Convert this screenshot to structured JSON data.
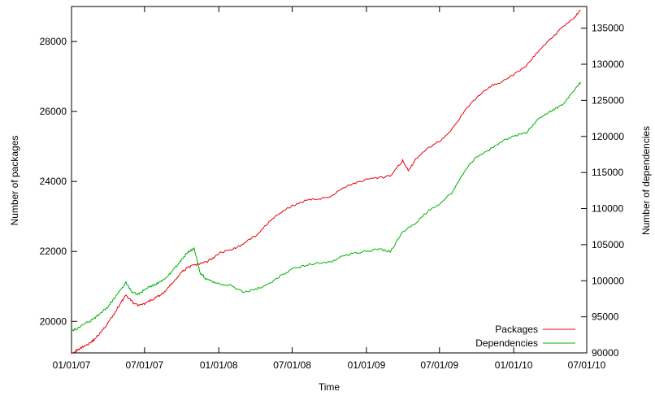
{
  "chart_data": {
    "type": "line",
    "xlabel": "Time",
    "ylabel_left": "Number of packages",
    "ylabel_right": "Number of dependencies",
    "x_ticks": [
      "01/01/07",
      "07/01/07",
      "01/01/08",
      "07/01/08",
      "01/01/09",
      "07/01/09",
      "01/01/10",
      "07/01/10"
    ],
    "xlim": [
      "2007-01-01",
      "2010-07-01"
    ],
    "ylim_left": [
      19100,
      29000
    ],
    "ylim_right": [
      90000,
      138000
    ],
    "y_ticks_left": [
      20000,
      22000,
      24000,
      26000,
      28000
    ],
    "y_ticks_right": [
      90000,
      95000,
      100000,
      105000,
      110000,
      115000,
      120000,
      125000,
      130000,
      135000
    ],
    "grid": false,
    "legend_position": "bottom-right",
    "series": [
      {
        "name": "Packages",
        "axis": "left",
        "color": "#e8000b",
        "points": [
          [
            "2007-01-01",
            19100
          ],
          [
            "2007-01-16",
            19180
          ],
          [
            "2007-02-01",
            19300
          ],
          [
            "2007-02-16",
            19380
          ],
          [
            "2007-03-01",
            19520
          ],
          [
            "2007-03-16",
            19700
          ],
          [
            "2007-04-01",
            19950
          ],
          [
            "2007-04-16",
            20200
          ],
          [
            "2007-05-01",
            20500
          ],
          [
            "2007-05-16",
            20750
          ],
          [
            "2007-06-01",
            20550
          ],
          [
            "2007-06-16",
            20450
          ],
          [
            "2007-07-01",
            20500
          ],
          [
            "2007-07-16",
            20600
          ],
          [
            "2007-08-01",
            20700
          ],
          [
            "2007-08-16",
            20800
          ],
          [
            "2007-09-01",
            21000
          ],
          [
            "2007-09-16",
            21200
          ],
          [
            "2007-10-01",
            21400
          ],
          [
            "2007-10-16",
            21550
          ],
          [
            "2007-11-01",
            21600
          ],
          [
            "2007-11-16",
            21650
          ],
          [
            "2007-12-01",
            21700
          ],
          [
            "2007-12-16",
            21800
          ],
          [
            "2008-01-01",
            21950
          ],
          [
            "2008-02-01",
            22050
          ],
          [
            "2008-03-01",
            22200
          ],
          [
            "2008-04-01",
            22450
          ],
          [
            "2008-05-01",
            22800
          ],
          [
            "2008-06-01",
            23100
          ],
          [
            "2008-07-01",
            23300
          ],
          [
            "2008-08-01",
            23450
          ],
          [
            "2008-09-01",
            23500
          ],
          [
            "2008-10-01",
            23550
          ],
          [
            "2008-11-01",
            23800
          ],
          [
            "2008-12-01",
            23950
          ],
          [
            "2009-01-01",
            24050
          ],
          [
            "2009-02-01",
            24100
          ],
          [
            "2009-03-01",
            24150
          ],
          [
            "2009-04-01",
            24600
          ],
          [
            "2009-04-15",
            24300
          ],
          [
            "2009-05-01",
            24600
          ],
          [
            "2009-06-01",
            24950
          ],
          [
            "2009-07-01",
            25150
          ],
          [
            "2009-08-01",
            25500
          ],
          [
            "2009-09-01",
            26000
          ],
          [
            "2009-10-01",
            26400
          ],
          [
            "2009-11-01",
            26700
          ],
          [
            "2009-12-01",
            26850
          ],
          [
            "2010-01-01",
            27050
          ],
          [
            "2010-02-01",
            27300
          ],
          [
            "2010-03-01",
            27700
          ],
          [
            "2010-04-01",
            28050
          ],
          [
            "2010-05-01",
            28400
          ],
          [
            "2010-06-01",
            28700
          ],
          [
            "2010-06-16",
            28900
          ]
        ]
      },
      {
        "name": "Dependencies",
        "axis": "right",
        "color": "#00b200",
        "points": [
          [
            "2007-01-01",
            93000
          ],
          [
            "2007-01-16",
            93400
          ],
          [
            "2007-02-01",
            94000
          ],
          [
            "2007-02-16",
            94400
          ],
          [
            "2007-03-01",
            94900
          ],
          [
            "2007-03-16",
            95600
          ],
          [
            "2007-04-01",
            96400
          ],
          [
            "2007-04-16",
            97500
          ],
          [
            "2007-05-01",
            98700
          ],
          [
            "2007-05-16",
            99700
          ],
          [
            "2007-06-01",
            98400
          ],
          [
            "2007-06-16",
            98100
          ],
          [
            "2007-07-01",
            98800
          ],
          [
            "2007-07-16",
            99200
          ],
          [
            "2007-08-01",
            99600
          ],
          [
            "2007-08-16",
            100100
          ],
          [
            "2007-09-01",
            100900
          ],
          [
            "2007-09-16",
            101900
          ],
          [
            "2007-10-01",
            102900
          ],
          [
            "2007-10-16",
            104000
          ],
          [
            "2007-11-01",
            104400
          ],
          [
            "2007-11-16",
            101100
          ],
          [
            "2007-12-01",
            100200
          ],
          [
            "2007-12-16",
            99900
          ],
          [
            "2008-01-01",
            99600
          ],
          [
            "2008-02-01",
            99300
          ],
          [
            "2008-03-01",
            98400
          ],
          [
            "2008-04-01",
            98800
          ],
          [
            "2008-05-01",
            99500
          ],
          [
            "2008-06-01",
            100600
          ],
          [
            "2008-07-01",
            101600
          ],
          [
            "2008-08-01",
            102100
          ],
          [
            "2008-09-01",
            102500
          ],
          [
            "2008-10-01",
            102500
          ],
          [
            "2008-11-01",
            103400
          ],
          [
            "2008-12-01",
            103800
          ],
          [
            "2009-01-01",
            104100
          ],
          [
            "2009-02-01",
            104400
          ],
          [
            "2009-03-01",
            104000
          ],
          [
            "2009-04-01",
            106700
          ],
          [
            "2009-05-01",
            107900
          ],
          [
            "2009-06-01",
            109600
          ],
          [
            "2009-07-01",
            110600
          ],
          [
            "2009-08-01",
            112200
          ],
          [
            "2009-09-01",
            115200
          ],
          [
            "2009-10-01",
            117200
          ],
          [
            "2009-11-01",
            118100
          ],
          [
            "2009-12-01",
            119300
          ],
          [
            "2010-01-01",
            120000
          ],
          [
            "2010-02-01",
            120500
          ],
          [
            "2010-03-01",
            122300
          ],
          [
            "2010-04-01",
            123400
          ],
          [
            "2010-05-01",
            124400
          ],
          [
            "2010-06-01",
            126500
          ],
          [
            "2010-06-16",
            127500
          ]
        ]
      }
    ]
  }
}
